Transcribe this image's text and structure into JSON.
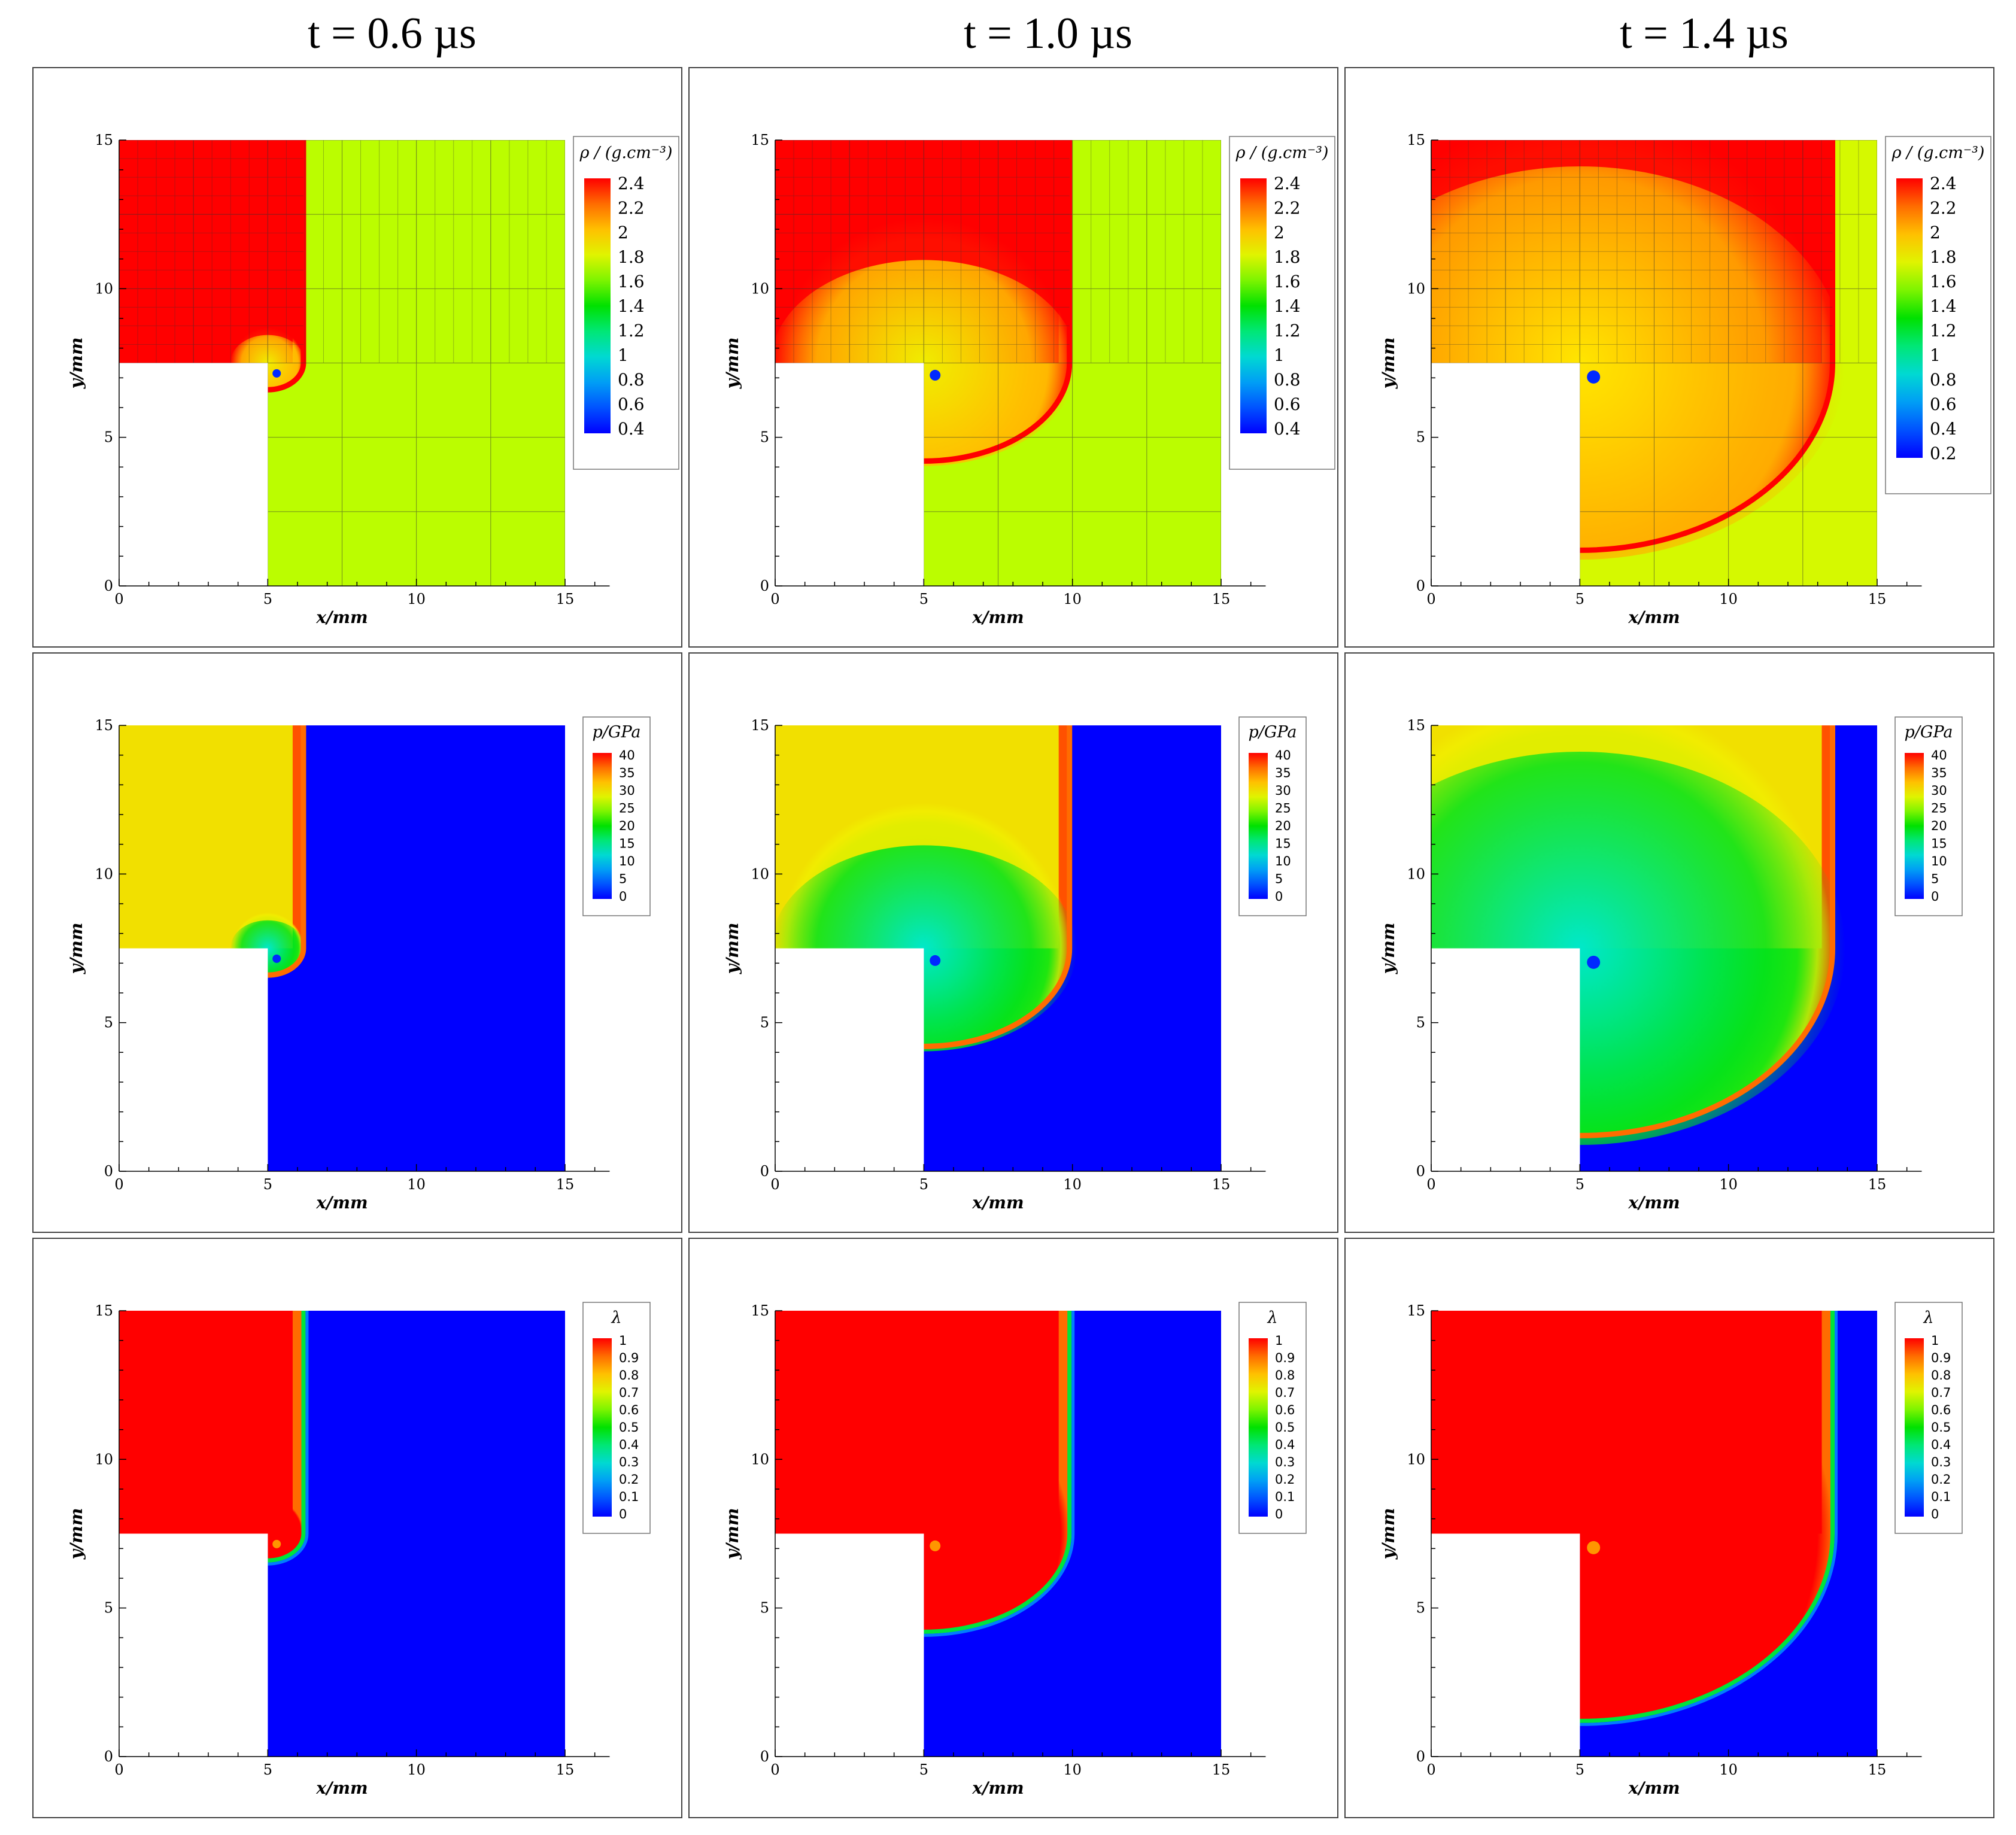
{
  "column_titles": [
    "t = 0.6 µs",
    "t = 1.0 µs",
    "t = 1.4 µs"
  ],
  "chart_data": [
    {
      "type": "heatmap",
      "field": "density",
      "time_us": 0.6,
      "xlabel": "x/mm",
      "ylabel": "y/mm",
      "xlim": [
        0,
        15
      ],
      "ylim": [
        0,
        15
      ],
      "xticks": [
        "0",
        "5",
        "10",
        "15"
      ],
      "yticks": [
        "0",
        "5",
        "10",
        "15"
      ],
      "legend_title": "ρ / (g.cm⁻³)",
      "legend_ticks": [
        "2.4",
        "2.2",
        "2",
        "1.8",
        "1.6",
        "1.4",
        "1.2",
        "1",
        "0.8",
        "0.6",
        "0.4"
      ],
      "value_range": [
        0.4,
        2.4
      ],
      "product_value": 2.4,
      "unreacted_value": 1.7,
      "front_position_mm": {
        "x": 6.2,
        "y": 6.6
      },
      "amr_grid": true
    },
    {
      "type": "heatmap",
      "field": "density",
      "time_us": 1.0,
      "xlabel": "x/mm",
      "ylabel": "y/mm",
      "xlim": [
        0,
        15
      ],
      "ylim": [
        0,
        15
      ],
      "xticks": [
        "0",
        "5",
        "10",
        "15"
      ],
      "yticks": [
        "0",
        "5",
        "10",
        "15"
      ],
      "legend_title": "ρ / (g.cm⁻³)",
      "legend_ticks": [
        "2.4",
        "2.2",
        "2",
        "1.8",
        "1.6",
        "1.4",
        "1.2",
        "1",
        "0.8",
        "0.6",
        "0.4"
      ],
      "value_range": [
        0.4,
        2.4
      ],
      "product_value": 2.4,
      "unreacted_value": 1.7,
      "front_position_mm": {
        "x": 9.9,
        "y": 4.2
      },
      "amr_grid": true
    },
    {
      "type": "heatmap",
      "field": "density",
      "time_us": 1.4,
      "xlabel": "x/mm",
      "ylabel": "y/mm",
      "xlim": [
        0,
        15
      ],
      "ylim": [
        0,
        15
      ],
      "xticks": [
        "0",
        "5",
        "10",
        "15"
      ],
      "yticks": [
        "0",
        "5",
        "10",
        "15"
      ],
      "legend_title": "ρ / (g.cm⁻³)",
      "legend_ticks": [
        "2.4",
        "2.2",
        "2",
        "1.8",
        "1.6",
        "1.4",
        "1.2",
        "1",
        "0.8",
        "0.6",
        "0.4",
        "0.2"
      ],
      "value_range": [
        0.2,
        2.4
      ],
      "product_value": 2.4,
      "unreacted_value": 1.7,
      "front_position_mm": {
        "x": 13.5,
        "y": 1.2
      },
      "amr_grid": true
    },
    {
      "type": "heatmap",
      "field": "pressure",
      "time_us": 0.6,
      "xlabel": "x/mm",
      "ylabel": "y/mm",
      "xlim": [
        0,
        15
      ],
      "ylim": [
        0,
        15
      ],
      "xticks": [
        "0",
        "5",
        "10",
        "15"
      ],
      "yticks": [
        "0",
        "5",
        "10",
        "15"
      ],
      "legend_title": "p/GPa",
      "legend_ticks": [
        "40",
        "35",
        "30",
        "25",
        "20",
        "15",
        "10",
        "5",
        "0"
      ],
      "value_range": [
        0,
        40
      ],
      "product_value": 29,
      "unreacted_value": 0,
      "front_position_mm": {
        "x": 6.2,
        "y": 6.6
      },
      "amr_grid": false
    },
    {
      "type": "heatmap",
      "field": "pressure",
      "time_us": 1.0,
      "xlabel": "x/mm",
      "ylabel": "y/mm",
      "xlim": [
        0,
        15
      ],
      "ylim": [
        0,
        15
      ],
      "xticks": [
        "0",
        "5",
        "10",
        "15"
      ],
      "yticks": [
        "0",
        "5",
        "10",
        "15"
      ],
      "legend_title": "p/GPa",
      "legend_ticks": [
        "40",
        "35",
        "30",
        "25",
        "20",
        "15",
        "10",
        "5",
        "0"
      ],
      "value_range": [
        0,
        40
      ],
      "product_value": 29,
      "unreacted_value": 0,
      "front_position_mm": {
        "x": 9.9,
        "y": 4.2
      },
      "amr_grid": false
    },
    {
      "type": "heatmap",
      "field": "pressure",
      "time_us": 1.4,
      "xlabel": "x/mm",
      "ylabel": "y/mm",
      "xlim": [
        0,
        15
      ],
      "ylim": [
        0,
        15
      ],
      "xticks": [
        "0",
        "5",
        "10",
        "15"
      ],
      "yticks": [
        "0",
        "5",
        "10",
        "15"
      ],
      "legend_title": "p/GPa",
      "legend_ticks": [
        "40",
        "35",
        "30",
        "25",
        "20",
        "15",
        "10",
        "5",
        "0"
      ],
      "value_range": [
        0,
        40
      ],
      "product_value": 29,
      "unreacted_value": 0,
      "front_position_mm": {
        "x": 13.5,
        "y": 1.2
      },
      "amr_grid": false
    },
    {
      "type": "heatmap",
      "field": "reaction_progress",
      "time_us": 0.6,
      "xlabel": "x/mm",
      "ylabel": "y/mm",
      "xlim": [
        0,
        15
      ],
      "ylim": [
        0,
        15
      ],
      "xticks": [
        "0",
        "5",
        "10",
        "15"
      ],
      "yticks": [
        "0",
        "5",
        "10",
        "15"
      ],
      "legend_title": "λ",
      "legend_ticks": [
        "1",
        "0.9",
        "0.8",
        "0.7",
        "0.6",
        "0.5",
        "0.4",
        "0.3",
        "0.2",
        "0.1",
        "0"
      ],
      "value_range": [
        0,
        1
      ],
      "product_value": 1,
      "unreacted_value": 0,
      "front_position_mm": {
        "x": 6.2,
        "y": 6.6
      },
      "amr_grid": false
    },
    {
      "type": "heatmap",
      "field": "reaction_progress",
      "time_us": 1.0,
      "xlabel": "x/mm",
      "ylabel": "y/mm",
      "xlim": [
        0,
        15
      ],
      "ylim": [
        0,
        15
      ],
      "xticks": [
        "0",
        "5",
        "10",
        "15"
      ],
      "yticks": [
        "0",
        "5",
        "10",
        "15"
      ],
      "legend_title": "λ",
      "legend_ticks": [
        "1",
        "0.9",
        "0.8",
        "0.7",
        "0.6",
        "0.5",
        "0.4",
        "0.3",
        "0.2",
        "0.1",
        "0"
      ],
      "value_range": [
        0,
        1
      ],
      "product_value": 1,
      "unreacted_value": 0,
      "front_position_mm": {
        "x": 9.9,
        "y": 4.2
      },
      "amr_grid": false
    },
    {
      "type": "heatmap",
      "field": "reaction_progress",
      "time_us": 1.4,
      "xlabel": "x/mm",
      "ylabel": "y/mm",
      "xlim": [
        0,
        15
      ],
      "ylim": [
        0,
        15
      ],
      "xticks": [
        "0",
        "5",
        "10",
        "15"
      ],
      "yticks": [
        "0",
        "5",
        "10",
        "15"
      ],
      "legend_title": "λ",
      "legend_ticks": [
        "1",
        "0.9",
        "0.8",
        "0.7",
        "0.6",
        "0.5",
        "0.4",
        "0.3",
        "0.2",
        "0.1",
        "0"
      ],
      "value_range": [
        0,
        1
      ],
      "product_value": 1,
      "unreacted_value": 0,
      "front_position_mm": {
        "x": 13.5,
        "y": 1.2
      },
      "amr_grid": false
    }
  ],
  "geometry_mm": {
    "corner_x": 5,
    "corner_y": 7.5
  }
}
